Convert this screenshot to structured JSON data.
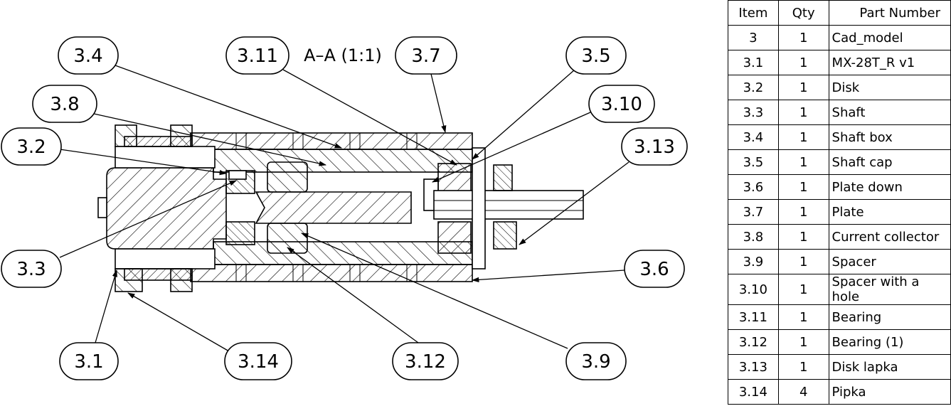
{
  "section_title": "A–A (1:1)",
  "balloons": [
    {
      "id": "3.4",
      "label": "3.4"
    },
    {
      "id": "3.11",
      "label": "3.11"
    },
    {
      "id": "3.7",
      "label": "3.7"
    },
    {
      "id": "3.5",
      "label": "3.5"
    },
    {
      "id": "3.8",
      "label": "3.8"
    },
    {
      "id": "3.10",
      "label": "3.10"
    },
    {
      "id": "3.2",
      "label": "3.2"
    },
    {
      "id": "3.13",
      "label": "3.13"
    },
    {
      "id": "3.3",
      "label": "3.3"
    },
    {
      "id": "3.6",
      "label": "3.6"
    },
    {
      "id": "3.1",
      "label": "3.1"
    },
    {
      "id": "3.14",
      "label": "3.14"
    },
    {
      "id": "3.12",
      "label": "3.12"
    },
    {
      "id": "3.9",
      "label": "3.9"
    }
  ],
  "bom": {
    "headers": {
      "item": "Item",
      "qty": "Qty",
      "part_number": "Part Number"
    },
    "rows": [
      {
        "item": "3",
        "qty": "1",
        "part_number": "Cad_model"
      },
      {
        "item": "3.1",
        "qty": "1",
        "part_number": "MX-28T_R v1"
      },
      {
        "item": "3.2",
        "qty": "1",
        "part_number": "Disk"
      },
      {
        "item": "3.3",
        "qty": "1",
        "part_number": "Shaft"
      },
      {
        "item": "3.4",
        "qty": "1",
        "part_number": "Shaft box"
      },
      {
        "item": "3.5",
        "qty": "1",
        "part_number": "Shaft cap"
      },
      {
        "item": "3.6",
        "qty": "1",
        "part_number": "Plate down"
      },
      {
        "item": "3.7",
        "qty": "1",
        "part_number": "Plate"
      },
      {
        "item": "3.8",
        "qty": "1",
        "part_number": "Current collector"
      },
      {
        "item": "3.9",
        "qty": "1",
        "part_number": "Spacer"
      },
      {
        "item": "3.10",
        "qty": "1",
        "part_number": "Spacer with a hole"
      },
      {
        "item": "3.11",
        "qty": "1",
        "part_number": "Bearing"
      },
      {
        "item": "3.12",
        "qty": "1",
        "part_number": "Bearing (1)"
      },
      {
        "item": "3.13",
        "qty": "1",
        "part_number": "Disk lapka"
      },
      {
        "item": "3.14",
        "qty": "4",
        "part_number": "Pipka"
      }
    ]
  }
}
